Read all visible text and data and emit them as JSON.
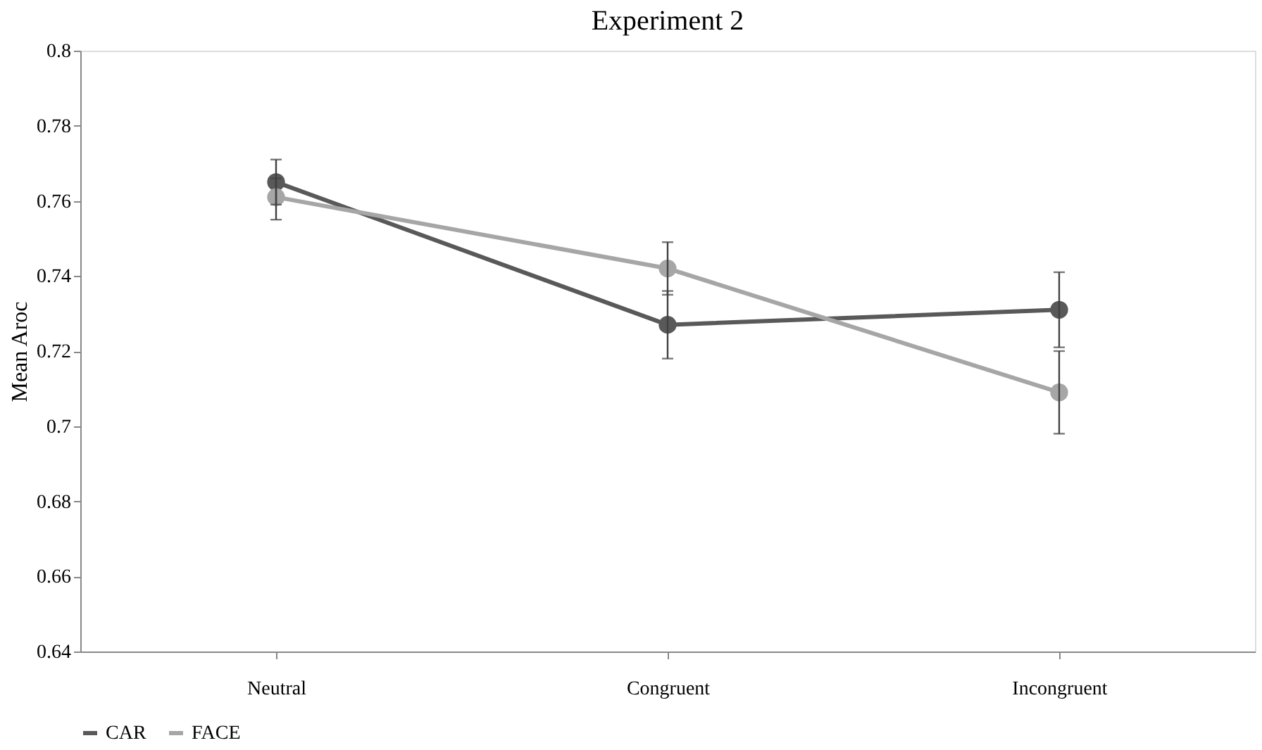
{
  "chart_data": {
    "type": "line",
    "title": "Experiment 2",
    "ylabel": "Mean Aroc",
    "categories": [
      "Neutral",
      "Congruent",
      "Incongruent"
    ],
    "series": [
      {
        "name": "CAR",
        "color": "#595959",
        "values": [
          0.765,
          0.727,
          0.731
        ],
        "errors": [
          [
            0.759,
            0.771
          ],
          [
            0.718,
            0.736
          ],
          [
            0.721,
            0.741
          ]
        ]
      },
      {
        "name": "FACE",
        "color": "#a6a6a6",
        "values": [
          0.761,
          0.742,
          0.709
        ],
        "errors": [
          [
            0.755,
            0.766
          ],
          [
            0.735,
            0.749
          ],
          [
            0.698,
            0.72
          ]
        ]
      }
    ],
    "ylim": [
      0.64,
      0.8
    ],
    "yticks": [
      0.64,
      0.66,
      0.68,
      {
        "value": 0.7,
        "label": "0.7"
      },
      0.72,
      0.74,
      0.76,
      0.78,
      {
        "value": 0.8,
        "label": "0.8"
      }
    ],
    "grid": false,
    "legend": "bottom",
    "marker": "circle",
    "line_style": "solid"
  }
}
